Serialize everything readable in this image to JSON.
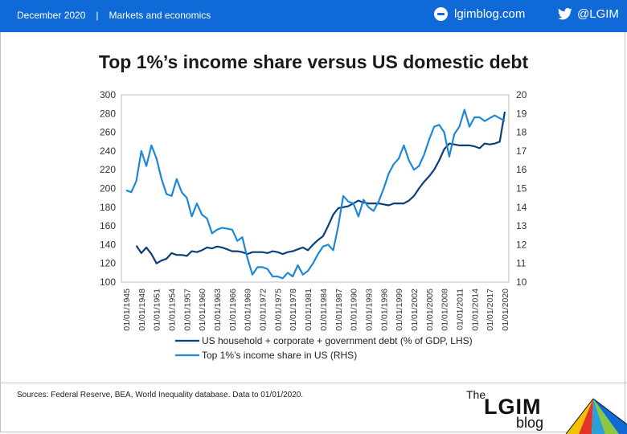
{
  "header": {
    "date": "December 2020",
    "separator": "|",
    "section": "Markets and economics",
    "site": "lgimblog.com",
    "twitter_handle": "@LGIM",
    "bar_color": "#0f6ad8"
  },
  "chart_data": {
    "type": "line",
    "title": "Top 1%’s income share versus US domestic debt",
    "left_axis": {
      "min": 100,
      "max": 300,
      "ticks": [
        100,
        120,
        140,
        160,
        180,
        200,
        220,
        240,
        260,
        280,
        300
      ]
    },
    "right_axis": {
      "min": 10,
      "max": 20,
      "ticks": [
        10,
        11,
        12,
        13,
        14,
        15,
        16,
        17,
        18,
        19,
        20
      ]
    },
    "x_range": [
      1945,
      2020
    ],
    "x_tick_labels": [
      "01/01/1945",
      "01/01/1948",
      "01/01/1951",
      "01/01/1954",
      "01/01/1957",
      "01/01/1960",
      "01/01/1963",
      "01/01/1966",
      "01/01/1969",
      "01/01/1972",
      "01/01/1975",
      "01/01/1978",
      "01/01/1981",
      "01/01/1984",
      "01/01/1987",
      "01/01/1990",
      "01/01/1993",
      "01/01/1996",
      "01/01/1999",
      "01/01/2002",
      "01/01/2005",
      "01/01/2008",
      "01/01/2011",
      "01/01/2014",
      "01/01/2017",
      "01/01/2020"
    ],
    "legend_placement": "bottom",
    "series": [
      {
        "name": "US household + corporate + government debt (% of GDP, LHS)",
        "axis": "left",
        "color": "#0b3f7a",
        "points": [
          [
            1947,
            139
          ],
          [
            1948,
            131
          ],
          [
            1949,
            137
          ],
          [
            1950,
            130
          ],
          [
            1951,
            120
          ],
          [
            1952,
            123
          ],
          [
            1953,
            125
          ],
          [
            1954,
            131
          ],
          [
            1955,
            129
          ],
          [
            1956,
            129
          ],
          [
            1957,
            128
          ],
          [
            1958,
            133
          ],
          [
            1959,
            132
          ],
          [
            1960,
            134
          ],
          [
            1961,
            137
          ],
          [
            1962,
            136
          ],
          [
            1963,
            138
          ],
          [
            1964,
            137
          ],
          [
            1965,
            135
          ],
          [
            1966,
            133
          ],
          [
            1967,
            133
          ],
          [
            1968,
            132
          ],
          [
            1969,
            130
          ],
          [
            1970,
            132
          ],
          [
            1971,
            132
          ],
          [
            1972,
            132
          ],
          [
            1973,
            131
          ],
          [
            1974,
            133
          ],
          [
            1975,
            132
          ],
          [
            1976,
            130
          ],
          [
            1977,
            132
          ],
          [
            1978,
            133
          ],
          [
            1979,
            135
          ],
          [
            1980,
            137
          ],
          [
            1981,
            134
          ],
          [
            1982,
            140
          ],
          [
            1983,
            145
          ],
          [
            1984,
            149
          ],
          [
            1985,
            160
          ],
          [
            1986,
            172
          ],
          [
            1987,
            179
          ],
          [
            1988,
            180
          ],
          [
            1989,
            181
          ],
          [
            1990,
            184
          ],
          [
            1991,
            187
          ],
          [
            1992,
            185
          ],
          [
            1993,
            184
          ],
          [
            1994,
            184
          ],
          [
            1995,
            184
          ],
          [
            1996,
            183
          ],
          [
            1997,
            182
          ],
          [
            1998,
            184
          ],
          [
            1999,
            184
          ],
          [
            2000,
            184
          ],
          [
            2001,
            187
          ],
          [
            2002,
            192
          ],
          [
            2003,
            200
          ],
          [
            2004,
            207
          ],
          [
            2005,
            213
          ],
          [
            2006,
            220
          ],
          [
            2007,
            230
          ],
          [
            2008,
            242
          ],
          [
            2009,
            248
          ],
          [
            2010,
            247
          ],
          [
            2011,
            246
          ],
          [
            2012,
            246
          ],
          [
            2013,
            246
          ],
          [
            2014,
            245
          ],
          [
            2015,
            243
          ],
          [
            2016,
            248
          ],
          [
            2017,
            247
          ],
          [
            2018,
            248
          ],
          [
            2019,
            250
          ],
          [
            2020,
            282
          ]
        ]
      },
      {
        "name": "Top 1%’s income share in US (RHS)",
        "axis": "right",
        "color": "#1f88d6",
        "points": [
          [
            1945,
            14.9
          ],
          [
            1946,
            14.8
          ],
          [
            1947,
            15.4
          ],
          [
            1948,
            17.0
          ],
          [
            1949,
            16.2
          ],
          [
            1950,
            17.3
          ],
          [
            1951,
            16.6
          ],
          [
            1952,
            15.5
          ],
          [
            1953,
            14.7
          ],
          [
            1954,
            14.6
          ],
          [
            1955,
            15.5
          ],
          [
            1956,
            14.8
          ],
          [
            1957,
            14.5
          ],
          [
            1958,
            13.5
          ],
          [
            1959,
            14.2
          ],
          [
            1960,
            13.6
          ],
          [
            1961,
            13.4
          ],
          [
            1962,
            12.6
          ],
          [
            1963,
            12.8
          ],
          [
            1964,
            12.9
          ],
          [
            1965,
            12.85
          ],
          [
            1966,
            12.8
          ],
          [
            1967,
            12.2
          ],
          [
            1968,
            12.4
          ],
          [
            1969,
            11.3
          ],
          [
            1970,
            10.4
          ],
          [
            1971,
            10.8
          ],
          [
            1972,
            10.8
          ],
          [
            1973,
            10.7
          ],
          [
            1974,
            10.3
          ],
          [
            1975,
            10.3
          ],
          [
            1976,
            10.2
          ],
          [
            1977,
            10.5
          ],
          [
            1978,
            10.3
          ],
          [
            1979,
            10.9
          ],
          [
            1980,
            10.4
          ],
          [
            1981,
            10.6
          ],
          [
            1982,
            11.0
          ],
          [
            1983,
            11.5
          ],
          [
            1984,
            11.9
          ],
          [
            1985,
            12.0
          ],
          [
            1986,
            11.7
          ],
          [
            1987,
            13.0
          ],
          [
            1988,
            14.6
          ],
          [
            1989,
            14.3
          ],
          [
            1990,
            14.2
          ],
          [
            1991,
            13.5
          ],
          [
            1992,
            14.4
          ],
          [
            1993,
            14.0
          ],
          [
            1994,
            13.8
          ],
          [
            1995,
            14.3
          ],
          [
            1996,
            15.0
          ],
          [
            1997,
            15.8
          ],
          [
            1998,
            16.3
          ],
          [
            1999,
            16.6
          ],
          [
            2000,
            17.3
          ],
          [
            2001,
            16.5
          ],
          [
            2002,
            16.0
          ],
          [
            2003,
            16.2
          ],
          [
            2004,
            16.8
          ],
          [
            2005,
            17.6
          ],
          [
            2006,
            18.3
          ],
          [
            2007,
            18.4
          ],
          [
            2008,
            18.0
          ],
          [
            2009,
            16.7
          ],
          [
            2010,
            17.9
          ],
          [
            2011,
            18.3
          ],
          [
            2012,
            19.2
          ],
          [
            2013,
            18.3
          ],
          [
            2014,
            18.8
          ],
          [
            2015,
            18.8
          ],
          [
            2016,
            18.6
          ],
          [
            2017,
            18.75
          ],
          [
            2018,
            18.9
          ],
          [
            2019,
            18.75
          ],
          [
            2020,
            18.6
          ]
        ]
      }
    ]
  },
  "footer": {
    "source": "Sources: Federal Reserve, BEA, World Inequality database. Data to 01/01/2020.",
    "brand_the": "The",
    "brand_name": "LGIM",
    "brand_blog": "blog"
  }
}
